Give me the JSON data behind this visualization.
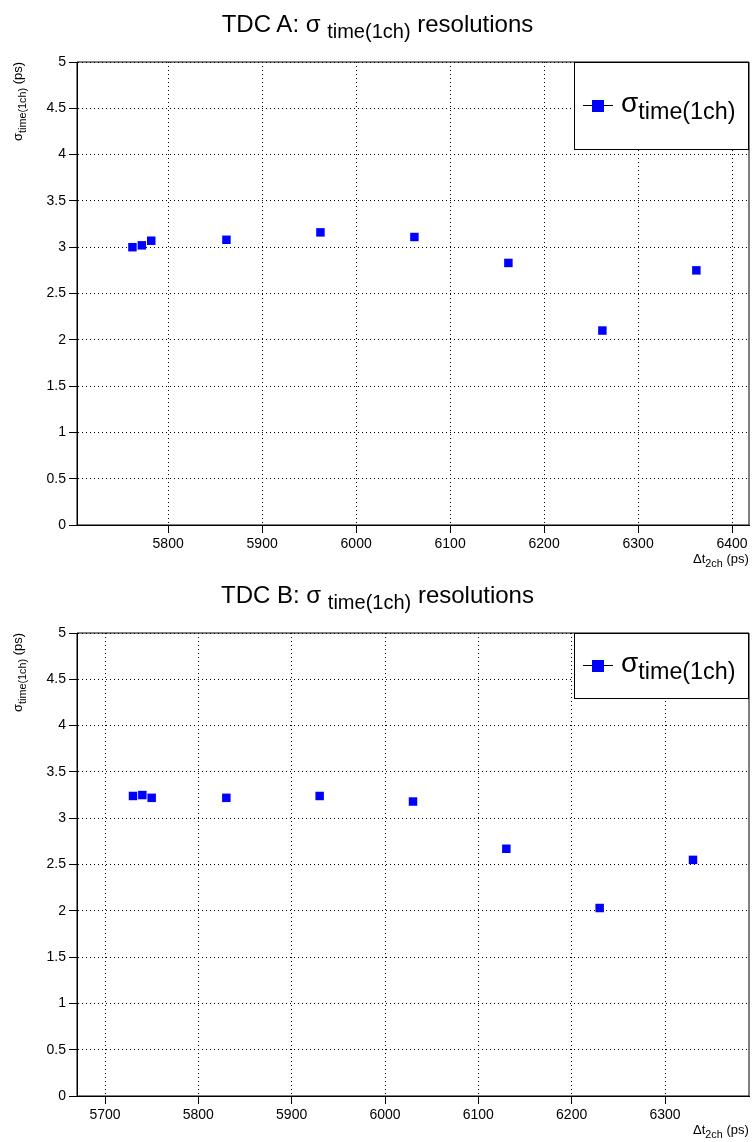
{
  "chart_data": [
    {
      "type": "scatter",
      "title": "TDC A: σ $_{time(1ch)}$ resolutions",
      "xlabel": "Δt$_{2ch}$ (ps)",
      "ylabel": "σ$_{time(1ch)}$ (ps)",
      "x": [
        5762,
        5772,
        5782,
        5862,
        5962,
        6062,
        6162,
        6262,
        6362
      ],
      "series": [
        {
          "name": "σ$_{time(1ch)}$",
          "color": "#0000ff",
          "values": [
            3.0,
            3.02,
            3.07,
            3.08,
            3.16,
            3.11,
            2.83,
            2.1,
            2.75
          ]
        }
      ],
      "xlim": [
        5703,
        6418
      ],
      "xticks": [
        5800,
        5900,
        6000,
        6100,
        6200,
        6300,
        6400
      ],
      "ylim": [
        0,
        5
      ],
      "yticks": [
        0,
        0.5,
        1,
        1.5,
        2,
        2.5,
        3,
        3.5,
        4,
        4.5,
        5
      ],
      "grid": true,
      "legend": "top right",
      "marker": "square"
    },
    {
      "type": "scatter",
      "title": "TDC B: σ $_{time(1ch)}$ resolutions",
      "xlabel": "Δt$_{2ch}$ (ps)",
      "ylabel": "σ$_{time(1ch)}$ (ps)",
      "x": [
        5730,
        5740,
        5750,
        5830,
        5930,
        6030,
        6130,
        6230,
        6330
      ],
      "series": [
        {
          "name": "σ$_{time(1ch)}$",
          "color": "#0000ff",
          "values": [
            3.24,
            3.25,
            3.22,
            3.22,
            3.24,
            3.18,
            2.67,
            2.03,
            2.55
          ]
        }
      ],
      "xlim": [
        5670,
        6390
      ],
      "xticks": [
        5700,
        5800,
        5900,
        6000,
        6100,
        6200,
        6300
      ],
      "ylim": [
        0,
        5
      ],
      "yticks": [
        0,
        0.5,
        1,
        1.5,
        2,
        2.5,
        3,
        3.5,
        4,
        4.5,
        5
      ],
      "grid": true,
      "legend": "top right",
      "marker": "square"
    }
  ]
}
